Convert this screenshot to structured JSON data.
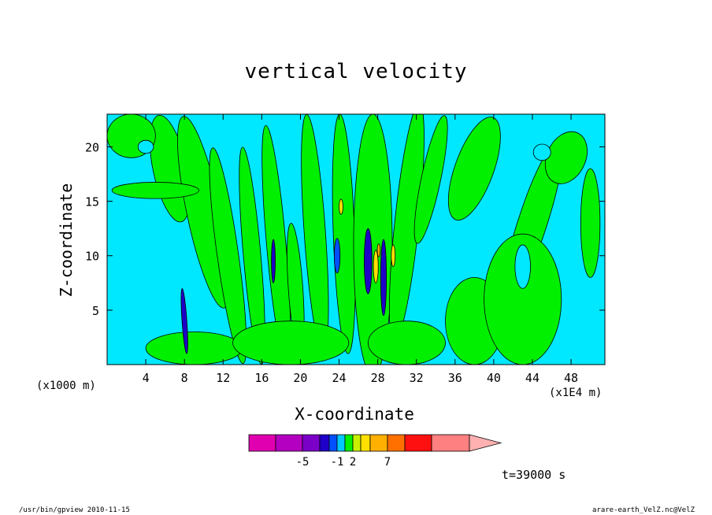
{
  "chart_data": {
    "type": "heatmap",
    "title": "vertical velocity",
    "xlabel": "X-coordinate",
    "ylabel": "Z-coordinate",
    "x_unit_left": "(x1000 m)",
    "x_unit_right": "(x1E4 m)",
    "xlim": [
      0,
      51.5
    ],
    "ylim": [
      0,
      23
    ],
    "x_ticks": [
      4,
      8,
      12,
      16,
      20,
      24,
      28,
      32,
      36,
      40,
      44,
      48
    ],
    "y_ticks": [
      5,
      10,
      15,
      20
    ],
    "time_label": "t=39000 s",
    "colorbar": {
      "colors": [
        "#e000b0",
        "#b400c0",
        "#7a00c8",
        "#1e00c8",
        "#0050ff",
        "#00c8ff",
        "#00f000",
        "#c8f000",
        "#ffe000",
        "#ffb000",
        "#ff7000",
        "#ff1010",
        "#ff8080",
        "#ffb0b0"
      ],
      "tick_labels": [
        "-5",
        "-1",
        "2",
        "7"
      ],
      "tick_after_box": [
        2,
        5,
        7,
        10
      ],
      "extend": "max"
    },
    "fields": [
      {
        "level": "green",
        "cx": 6.5,
        "cz": 18,
        "w": 3.5,
        "h": 10,
        "rot": -12
      },
      {
        "level": "green",
        "cx": 10,
        "cz": 14,
        "w": 3.5,
        "h": 18,
        "rot": -12
      },
      {
        "level": "green",
        "cx": 12.5,
        "cz": 10,
        "w": 2.2,
        "h": 20,
        "rot": -8
      },
      {
        "level": "green",
        "cx": 15,
        "cz": 10,
        "w": 1.8,
        "h": 20,
        "rot": -5
      },
      {
        "level": "green",
        "cx": 17.5,
        "cz": 11,
        "w": 2,
        "h": 22,
        "rot": -5
      },
      {
        "level": "green",
        "cx": 19.5,
        "cz": 7,
        "w": 1.5,
        "h": 12,
        "rot": -4
      },
      {
        "level": "green",
        "cx": 21.5,
        "cz": 12,
        "w": 2.2,
        "h": 22,
        "rot": -4
      },
      {
        "level": "green",
        "cx": 24.5,
        "cz": 12,
        "w": 2.2,
        "h": 22,
        "rot": -2
      },
      {
        "level": "green",
        "cx": 27.5,
        "cz": 11,
        "w": 4,
        "h": 24,
        "rot": 0
      },
      {
        "level": "green",
        "cx": 31,
        "cz": 13,
        "w": 2.5,
        "h": 22,
        "rot": 6
      },
      {
        "level": "green",
        "cx": 33.5,
        "cz": 17,
        "w": 2,
        "h": 12,
        "rot": 12
      },
      {
        "level": "green",
        "cx": 38,
        "cz": 18,
        "w": 4,
        "h": 10,
        "rot": 20
      },
      {
        "level": "green",
        "cx": 44,
        "cz": 13,
        "w": 3,
        "h": 16,
        "rot": 18
      },
      {
        "level": "green",
        "cx": 47.5,
        "cz": 19,
        "w": 4,
        "h": 5,
        "rot": 25
      },
      {
        "level": "green",
        "cx": 5,
        "cz": 16,
        "w": 9,
        "h": 1.5,
        "rot": 0
      },
      {
        "level": "green",
        "cx": 2.5,
        "cz": 21,
        "w": 5,
        "h": 4,
        "rot": 0
      },
      {
        "level": "green",
        "cx": 38,
        "cz": 4,
        "w": 6,
        "h": 8,
        "rot": 0
      },
      {
        "level": "green",
        "cx": 43,
        "cz": 6,
        "w": 8,
        "h": 12,
        "rot": 0
      },
      {
        "level": "green",
        "cx": 50,
        "cz": 13,
        "w": 2,
        "h": 10,
        "rot": 0
      },
      {
        "level": "green",
        "cx": 9,
        "cz": 1.5,
        "w": 10,
        "h": 3,
        "rot": 0
      },
      {
        "level": "green",
        "cx": 19,
        "cz": 2,
        "w": 12,
        "h": 4,
        "rot": 0
      },
      {
        "level": "green",
        "cx": 31,
        "cz": 2,
        "w": 8,
        "h": 4,
        "rot": 0
      },
      {
        "level": "cyan",
        "cx": 4,
        "cz": 20,
        "w": 1.6,
        "h": 1.2,
        "rot": 0
      },
      {
        "level": "cyan",
        "cx": 45,
        "cz": 19.5,
        "w": 1.8,
        "h": 1.5,
        "rot": 0
      },
      {
        "level": "cyan",
        "cx": 43,
        "cz": 9,
        "w": 1.6,
        "h": 4,
        "rot": 0
      },
      {
        "level": "blue",
        "cx": 23.8,
        "cz": 10,
        "w": 0.6,
        "h": 3.2,
        "rot": 0
      },
      {
        "level": "darkblue",
        "cx": 8,
        "cz": 4,
        "w": 0.5,
        "h": 6,
        "rot": -4
      },
      {
        "level": "darkblue",
        "cx": 17.2,
        "cz": 9.5,
        "w": 0.4,
        "h": 4,
        "rot": 0
      },
      {
        "level": "darkblue",
        "cx": 27,
        "cz": 9.5,
        "w": 0.8,
        "h": 6,
        "rot": 0
      },
      {
        "level": "darkblue",
        "cx": 28.6,
        "cz": 8,
        "w": 0.6,
        "h": 7,
        "rot": 0
      },
      {
        "level": "yellow",
        "cx": 24.2,
        "cz": 14.5,
        "w": 0.4,
        "h": 1.4,
        "rot": 0
      },
      {
        "level": "yellow",
        "cx": 27.8,
        "cz": 9,
        "w": 0.5,
        "h": 3,
        "rot": 0
      },
      {
        "level": "yellow",
        "cx": 29.6,
        "cz": 10,
        "w": 0.4,
        "h": 2,
        "rot": 0
      },
      {
        "level": "orange",
        "cx": 28.1,
        "cz": 10.5,
        "w": 0.3,
        "h": 1.2,
        "rot": 0
      }
    ]
  },
  "footer": {
    "left": "/usr/bin/gpview  2010-11-15",
    "right": "arare-earth_VelZ.nc@VelZ"
  }
}
